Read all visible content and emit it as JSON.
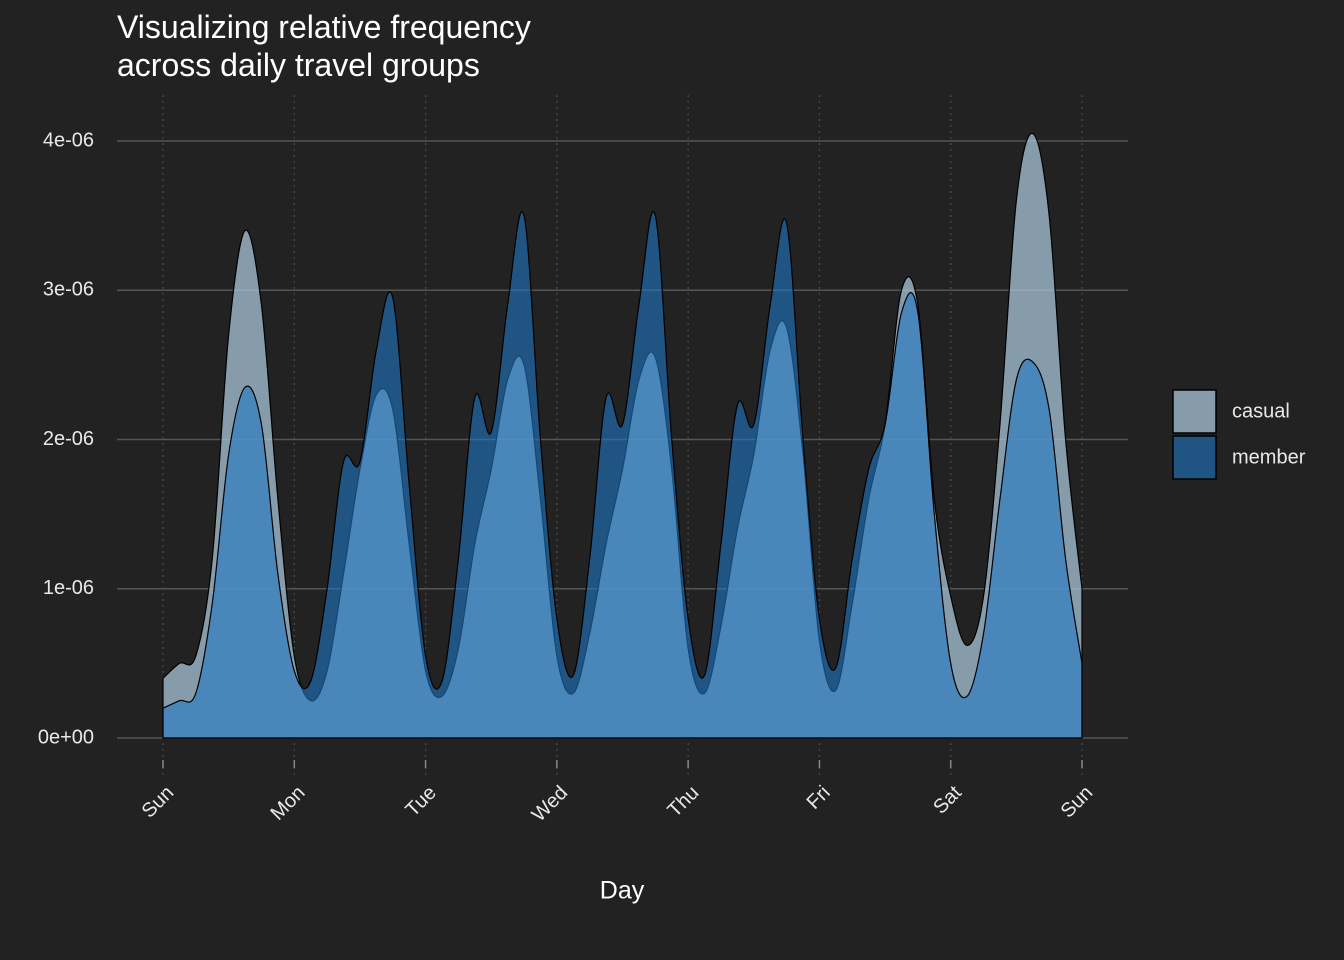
{
  "chart_data": {
    "type": "area",
    "title": "Visualizing relative frequency\nacross daily travel groups",
    "x_label": "Day",
    "x": [
      0,
      0.125,
      0.25,
      0.375,
      0.5,
      0.625,
      0.75,
      0.875,
      1,
      1.125,
      1.25,
      1.375,
      1.5,
      1.625,
      1.75,
      1.875,
      2,
      2.125,
      2.25,
      2.375,
      2.5,
      2.625,
      2.75,
      2.875,
      3,
      3.125,
      3.25,
      3.375,
      3.5,
      3.625,
      3.75,
      3.875,
      4,
      4.125,
      4.25,
      4.375,
      4.5,
      4.625,
      4.75,
      4.875,
      5,
      5.125,
      5.25,
      5.375,
      5.5,
      5.625,
      5.75,
      5.875,
      6,
      6.125,
      6.25,
      6.375,
      6.5,
      6.625,
      6.75,
      6.875,
      7
    ],
    "series": [
      {
        "name": "casual",
        "color": "#a9c6da",
        "values": [
          4e-07,
          5e-07,
          5.5e-07,
          1.2e-06,
          2.7e-06,
          3.4e-06,
          2.9e-06,
          1.6e-06,
          5.5e-07,
          2.5e-07,
          4.5e-07,
          1.1e-06,
          1.8e-06,
          2.3e-06,
          2.2e-06,
          1.3e-06,
          4.5e-07,
          2.8e-07,
          6e-07,
          1.3e-06,
          1.8e-06,
          2.4e-06,
          2.5e-06,
          1.6e-06,
          5.5e-07,
          3e-07,
          7e-07,
          1.3e-06,
          1.8e-06,
          2.4e-06,
          2.55e-06,
          1.8e-06,
          6e-07,
          3e-07,
          7.5e-07,
          1.4e-06,
          1.9e-06,
          2.6e-06,
          2.75e-06,
          1.9e-06,
          6.5e-07,
          3.2e-07,
          9e-07,
          1.6e-06,
          2.1e-06,
          3e-06,
          2.9e-06,
          1.6e-06,
          9.5e-07,
          6.2e-07,
          9.5e-07,
          2.1e-06,
          3.6e-06,
          4.05e-06,
          3.5e-06,
          2e-06,
          1e-06
        ]
      },
      {
        "name": "member",
        "color": "#1f78c4",
        "values": [
          2e-07,
          2.5e-07,
          3e-07,
          9e-07,
          1.9e-06,
          2.35e-06,
          2.1e-06,
          1.1e-06,
          4.5e-07,
          3.8e-07,
          1e-06,
          1.85e-06,
          1.85e-06,
          2.6e-06,
          2.95e-06,
          1.7e-06,
          5.5e-07,
          3.8e-07,
          1.2e-06,
          2.28e-06,
          2.05e-06,
          2.9e-06,
          3.5e-06,
          2e-06,
          8e-07,
          4.2e-07,
          1.2e-06,
          2.28e-06,
          2.1e-06,
          2.9e-06,
          3.5e-06,
          2e-06,
          8e-07,
          4.2e-07,
          1.3e-06,
          2.23e-06,
          2.1e-06,
          2.9e-06,
          3.45e-06,
          2e-06,
          8e-07,
          4.7e-07,
          1.2e-06,
          1.8e-06,
          2.1e-06,
          2.85e-06,
          2.85e-06,
          1.5e-06,
          5e-07,
          2.8e-07,
          7e-07,
          1.6e-06,
          2.4e-06,
          2.52e-06,
          2.2e-06,
          1.2e-06,
          5e-07
        ]
      }
    ],
    "xlim": [
      0,
      7
    ],
    "xticks": [
      {
        "value": 0,
        "label": "Sun"
      },
      {
        "value": 1,
        "label": "Mon"
      },
      {
        "value": 2,
        "label": "Tue"
      },
      {
        "value": 3,
        "label": "Wed"
      },
      {
        "value": 4,
        "label": "Thu"
      },
      {
        "value": 5,
        "label": "Fri"
      },
      {
        "value": 6,
        "label": "Sat"
      },
      {
        "value": 7,
        "label": "Sun"
      }
    ],
    "ylim": [
      0,
      4e-06
    ],
    "yticks": [
      {
        "value": 0,
        "label": "0e+00"
      },
      {
        "value": 1e-06,
        "label": "1e-06"
      },
      {
        "value": 2e-06,
        "label": "2e-06"
      },
      {
        "value": 3e-06,
        "label": "3e-06"
      },
      {
        "value": 4e-06,
        "label": "4e-06"
      }
    ],
    "grid": true,
    "legend": "right"
  }
}
